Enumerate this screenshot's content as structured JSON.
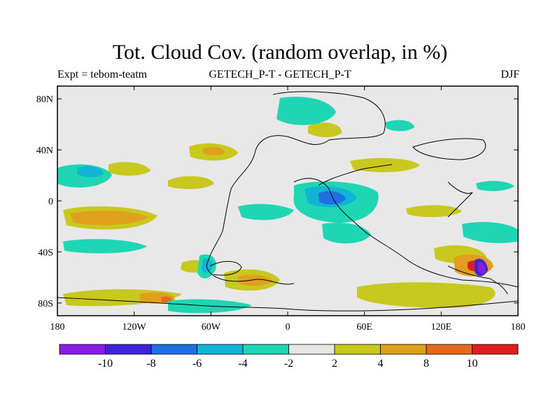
{
  "title": "Tot. Cloud Cov. (random overlap, in %)",
  "subtitle_left": "Expt = tebom-teatm",
  "subtitle_center": "GETECH_P-T - GETECH_P-T",
  "subtitle_right": "DJF",
  "map": {
    "lon_range": [
      -180,
      180
    ],
    "lat_range": [
      -90,
      90
    ],
    "background_color": "#e8e8e8",
    "lon_ticks": [
      {
        "value": -180,
        "label": "180"
      },
      {
        "value": -120,
        "label": "120W"
      },
      {
        "value": -60,
        "label": "60W"
      },
      {
        "value": 0,
        "label": "0"
      },
      {
        "value": 60,
        "label": "60E"
      },
      {
        "value": 120,
        "label": "120E"
      },
      {
        "value": 180,
        "label": "180"
      }
    ],
    "lat_ticks": [
      {
        "value": 80,
        "label": "80N"
      },
      {
        "value": 40,
        "label": "40N"
      },
      {
        "value": 0,
        "label": "0"
      },
      {
        "value": -40,
        "label": "40S"
      },
      {
        "value": -80,
        "label": "80S"
      }
    ]
  },
  "colorbar": {
    "colors": [
      "#8a1ee0",
      "#3b25d6",
      "#1e6fe0",
      "#12b4d6",
      "#1ed6b4",
      "#e6e6e6",
      "#c8c81e",
      "#e0a01e",
      "#e66a1e",
      "#e01e1e"
    ],
    "labels": [
      "-10",
      "-8",
      "-6",
      "-4",
      "-2",
      "2",
      "4",
      "8",
      "10"
    ]
  }
}
